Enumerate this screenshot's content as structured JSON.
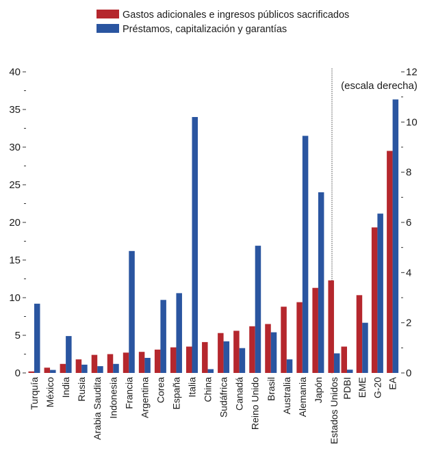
{
  "chart_data": {
    "type": "bar",
    "legend": {
      "placement": "top",
      "entries": [
        {
          "name": "Gastos adicionales e ingresos públicos sacrificados",
          "color": "#b5272d"
        },
        {
          "name": "Préstamos, capitalización y garantías",
          "color": "#2a55a0"
        }
      ]
    },
    "left_panel": {
      "axis": "left",
      "ylim": [
        0,
        40
      ],
      "yticks": [
        0,
        5,
        10,
        15,
        20,
        25,
        30,
        35,
        40
      ],
      "categories": [
        "Turquía",
        "México",
        "India",
        "Rusia",
        "Arabia Saudita",
        "Indonesia",
        "Francia",
        "Argentina",
        "Corea",
        "España",
        "Italia",
        "China",
        "Sudáfrica",
        "Canadá",
        "Reino Unido",
        "Brasil",
        "Australia",
        "Alemania",
        "Japón",
        "Estados Unidos"
      ],
      "series": [
        {
          "name": "Gastos adicionales e ingresos públicos sacrificados",
          "values": [
            0.2,
            0.7,
            1.2,
            1.8,
            2.4,
            2.5,
            2.7,
            2.8,
            3.1,
            3.4,
            3.5,
            4.1,
            5.3,
            5.6,
            6.2,
            6.5,
            8.8,
            9.4,
            11.3,
            12.3
          ]
        },
        {
          "name": "Préstamos, capitalización y garantías",
          "values": [
            9.2,
            0.4,
            4.9,
            1.1,
            0.9,
            1.2,
            16.2,
            2.0,
            9.7,
            10.6,
            34.0,
            0.5,
            4.2,
            3.3,
            16.9,
            5.4,
            1.8,
            31.5,
            24.0,
            2.6
          ]
        }
      ]
    },
    "right_panel": {
      "axis": "right",
      "axis_note": "(escala derecha)",
      "ylim": [
        0,
        12
      ],
      "yticks": [
        0,
        2,
        4,
        6,
        8,
        10,
        12
      ],
      "categories": [
        "PDBI",
        "EME",
        "G-20",
        "EA"
      ],
      "series": [
        {
          "name": "Gastos adicionales e ingresos públicos sacrificados",
          "values": [
            1.05,
            3.1,
            5.8,
            8.85
          ]
        },
        {
          "name": "Préstamos, capitalización y garantías",
          "values": [
            0.13,
            2.0,
            6.35,
            10.9
          ]
        }
      ]
    },
    "grid": false
  }
}
